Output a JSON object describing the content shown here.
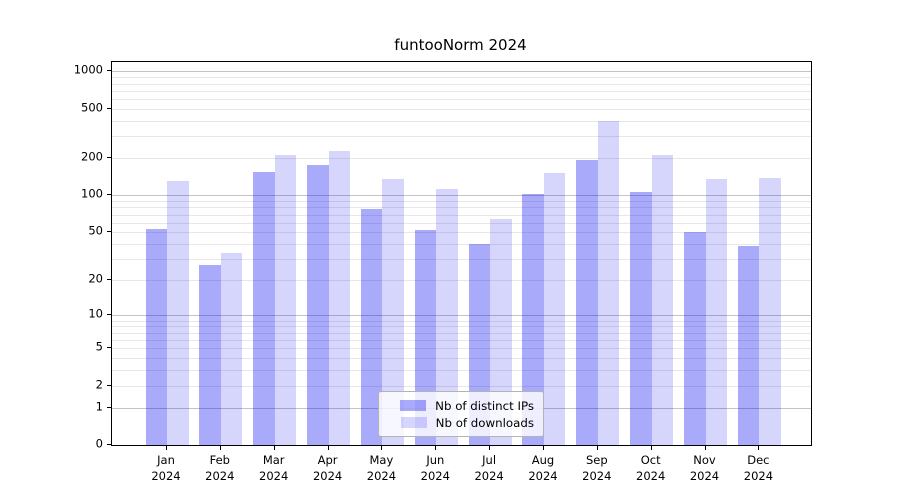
{
  "title": "funtooNorm 2024",
  "chart_data": {
    "type": "bar",
    "title": "funtooNorm 2024",
    "categories": [
      "Jan 2024",
      "Feb 2024",
      "Mar 2024",
      "Apr 2024",
      "May 2024",
      "Jun 2024",
      "Jul 2024",
      "Aug 2024",
      "Sep 2024",
      "Oct 2024",
      "Nov 2024",
      "Dec 2024"
    ],
    "series": [
      {
        "name": "Nb of distinct IPs",
        "color": "rgba(0,0,240,0.335)",
        "values": [
          53,
          27,
          156,
          178,
          78,
          52,
          40,
          103,
          195,
          107,
          50,
          39
        ]
      },
      {
        "name": "Nb of downloads",
        "color": "rgba(0,0,240,0.16)",
        "values": [
          130,
          34,
          214,
          231,
          135,
          113,
          64,
          153,
          400,
          214,
          137,
          139
        ]
      }
    ],
    "yscale": "log1p",
    "y_ticks": [
      0,
      1,
      2,
      5,
      10,
      20,
      50,
      100,
      200,
      500,
      1000
    ],
    "y_tick_labels": [
      "0",
      "1",
      "2",
      "5",
      "10",
      "20",
      "50",
      "100",
      "200",
      "500",
      "1000"
    ],
    "ylim": [
      0,
      1190
    ],
    "grid": true,
    "legend_position": "lower center inside",
    "xlabel": "",
    "ylabel": ""
  },
  "legend": {
    "items": [
      {
        "label": "Nb of distinct IPs"
      },
      {
        "label": "Nb of downloads"
      }
    ]
  },
  "colors": {
    "ips_bar": "rgba(0,0,240,0.335)",
    "downloads_bar": "rgba(0,0,240,0.16)",
    "grid_major": "#c4c4c4",
    "grid_minor": "#e7e7e7",
    "axis": "#000000",
    "legend_border": "#b3b3b3"
  }
}
